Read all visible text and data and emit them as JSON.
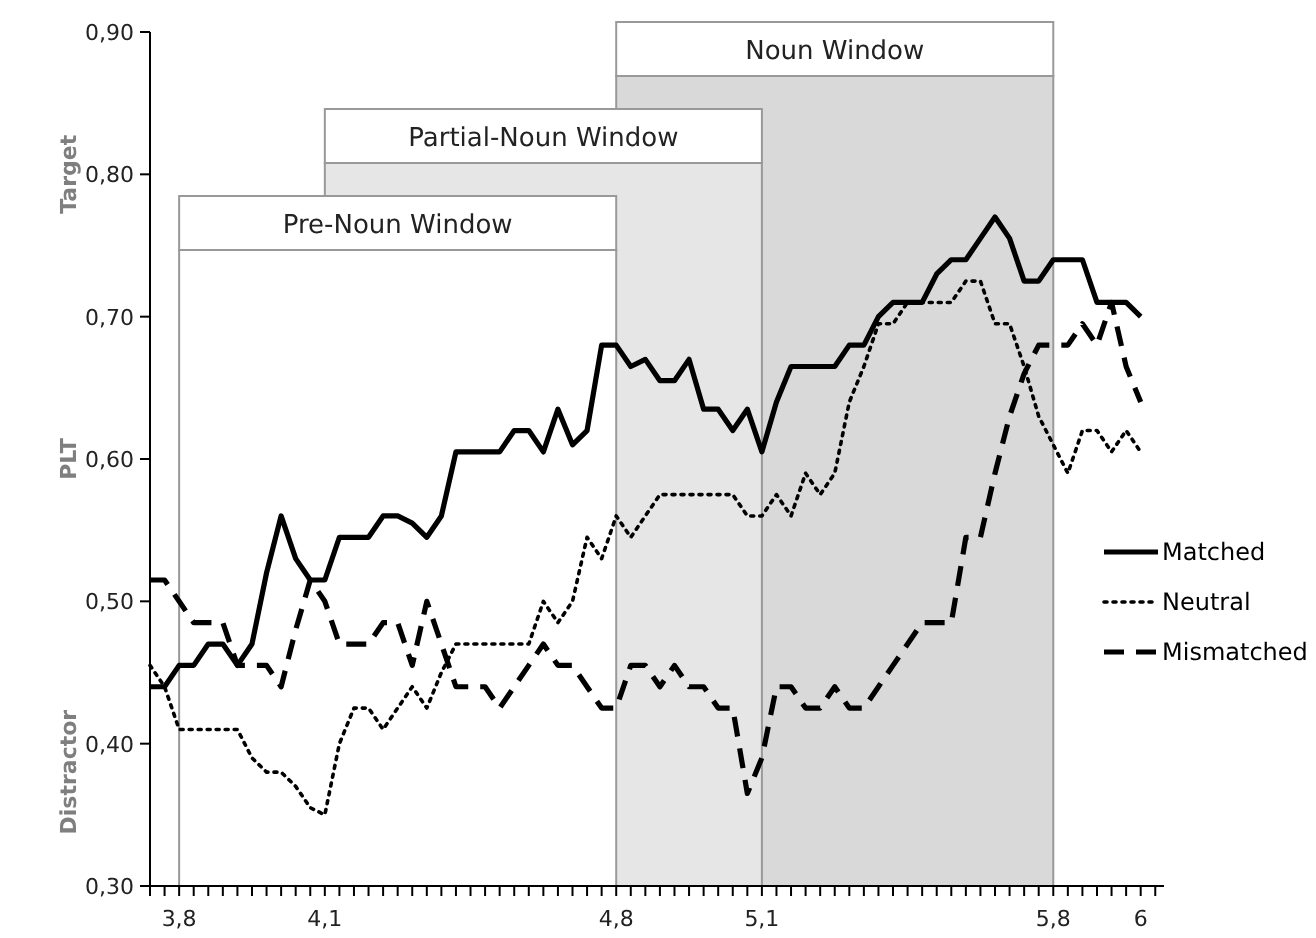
{
  "chart_data": {
    "type": "line",
    "ylabel": "PLT",
    "annotations": [
      "Target",
      "Distractor"
    ],
    "categories": [
      null,
      null,
      "3,8",
      null,
      null,
      null,
      null,
      null,
      null,
      null,
      null,
      null,
      "4,1",
      null,
      null,
      null,
      null,
      null,
      null,
      null,
      null,
      null,
      null,
      null,
      null,
      null,
      null,
      null,
      null,
      null,
      null,
      null,
      "4,8",
      null,
      null,
      null,
      null,
      null,
      null,
      null,
      null,
      null,
      "5,1",
      null,
      null,
      null,
      null,
      null,
      null,
      null,
      null,
      null,
      null,
      null,
      null,
      null,
      null,
      null,
      null,
      null,
      null,
      null,
      "5,8",
      null,
      null,
      null,
      null,
      null,
      "6"
    ],
    "series": [
      {
        "name": "Matched",
        "color": "#000000",
        "line_style": "solid",
        "values": [
          0.44,
          0.44,
          0.455,
          0.455,
          0.47,
          0.47,
          0.455,
          0.47,
          0.52,
          0.56,
          0.53,
          0.515,
          0.515,
          0.545,
          0.545,
          0.545,
          0.56,
          0.56,
          0.555,
          0.545,
          0.56,
          0.605,
          0.605,
          0.605,
          0.605,
          0.62,
          0.62,
          0.605,
          0.635,
          0.61,
          0.62,
          0.68,
          0.68,
          0.665,
          0.67,
          0.655,
          0.655,
          0.67,
          0.635,
          0.635,
          0.62,
          0.635,
          0.605,
          0.64,
          0.665,
          0.665,
          0.665,
          0.665,
          0.68,
          0.68,
          0.7,
          0.71,
          0.71,
          0.71,
          0.73,
          0.74,
          0.74,
          0.755,
          0.77,
          0.755,
          0.725,
          0.725,
          0.74,
          0.74,
          0.74,
          0.71,
          0.71,
          0.71,
          0.7
        ]
      },
      {
        "name": "Neutral",
        "color": "#000000",
        "line_style": "dotted",
        "values": [
          0.455,
          0.44,
          0.41,
          0.41,
          0.41,
          0.41,
          0.41,
          0.39,
          0.38,
          0.38,
          0.37,
          0.355,
          0.35,
          0.4,
          0.425,
          0.425,
          0.41,
          0.425,
          0.44,
          0.425,
          0.45,
          0.47,
          0.47,
          0.47,
          0.47,
          0.47,
          0.47,
          0.5,
          0.485,
          0.5,
          0.545,
          0.53,
          0.56,
          0.545,
          0.56,
          0.575,
          0.575,
          0.575,
          0.575,
          0.575,
          0.575,
          0.56,
          0.56,
          0.575,
          0.56,
          0.59,
          0.575,
          0.59,
          0.64,
          0.665,
          0.695,
          0.695,
          0.71,
          0.71,
          0.71,
          0.71,
          0.725,
          0.725,
          0.695,
          0.695,
          0.665,
          0.63,
          0.61,
          0.59,
          0.62,
          0.62,
          0.605,
          0.62,
          0.605
        ]
      },
      {
        "name": "Mismatched",
        "color": "#000000",
        "line_style": "dashed",
        "values": [
          0.515,
          0.515,
          0.5,
          0.485,
          0.485,
          0.485,
          0.455,
          0.455,
          0.455,
          0.44,
          0.48,
          0.515,
          0.5,
          0.47,
          0.47,
          0.47,
          0.485,
          0.485,
          0.455,
          0.5,
          0.47,
          0.44,
          0.44,
          0.44,
          0.425,
          0.44,
          0.455,
          0.47,
          0.455,
          0.455,
          0.44,
          0.425,
          0.425,
          0.455,
          0.455,
          0.44,
          0.455,
          0.44,
          0.44,
          0.425,
          0.425,
          0.365,
          0.39,
          0.44,
          0.44,
          0.425,
          0.425,
          0.44,
          0.425,
          0.425,
          0.44,
          0.455,
          0.47,
          0.485,
          0.485,
          0.485,
          0.545,
          0.545,
          0.59,
          0.63,
          0.66,
          0.68,
          0.68,
          0.68,
          0.695,
          0.68,
          0.71,
          0.665,
          0.64
        ]
      }
    ],
    "ylim": [
      0.3,
      0.9
    ],
    "yticks": [
      {
        "value": 0.3,
        "label": "0,30"
      },
      {
        "value": 0.4,
        "label": "0,40"
      },
      {
        "value": 0.5,
        "label": "0,50"
      },
      {
        "value": 0.6,
        "label": "0,60"
      },
      {
        "value": 0.7,
        "label": "0,70"
      },
      {
        "value": 0.8,
        "label": "0,80"
      },
      {
        "value": 0.9,
        "label": "0,90"
      }
    ],
    "bands": [
      {
        "axis": "x",
        "from": "3,8",
        "to": "4,8",
        "label": "Pre-Noun Window",
        "color": "#ffffff"
      },
      {
        "axis": "x",
        "from": "4,1",
        "to": "5,1",
        "label": "Partial-Noun Window",
        "color": "#e6e6e6"
      },
      {
        "axis": "x",
        "from": "4,8",
        "to": "5,8",
        "label": "Noun Window",
        "color": "#d9d9d9"
      }
    ],
    "legend": "right",
    "grid": false,
    "marker": "none"
  }
}
